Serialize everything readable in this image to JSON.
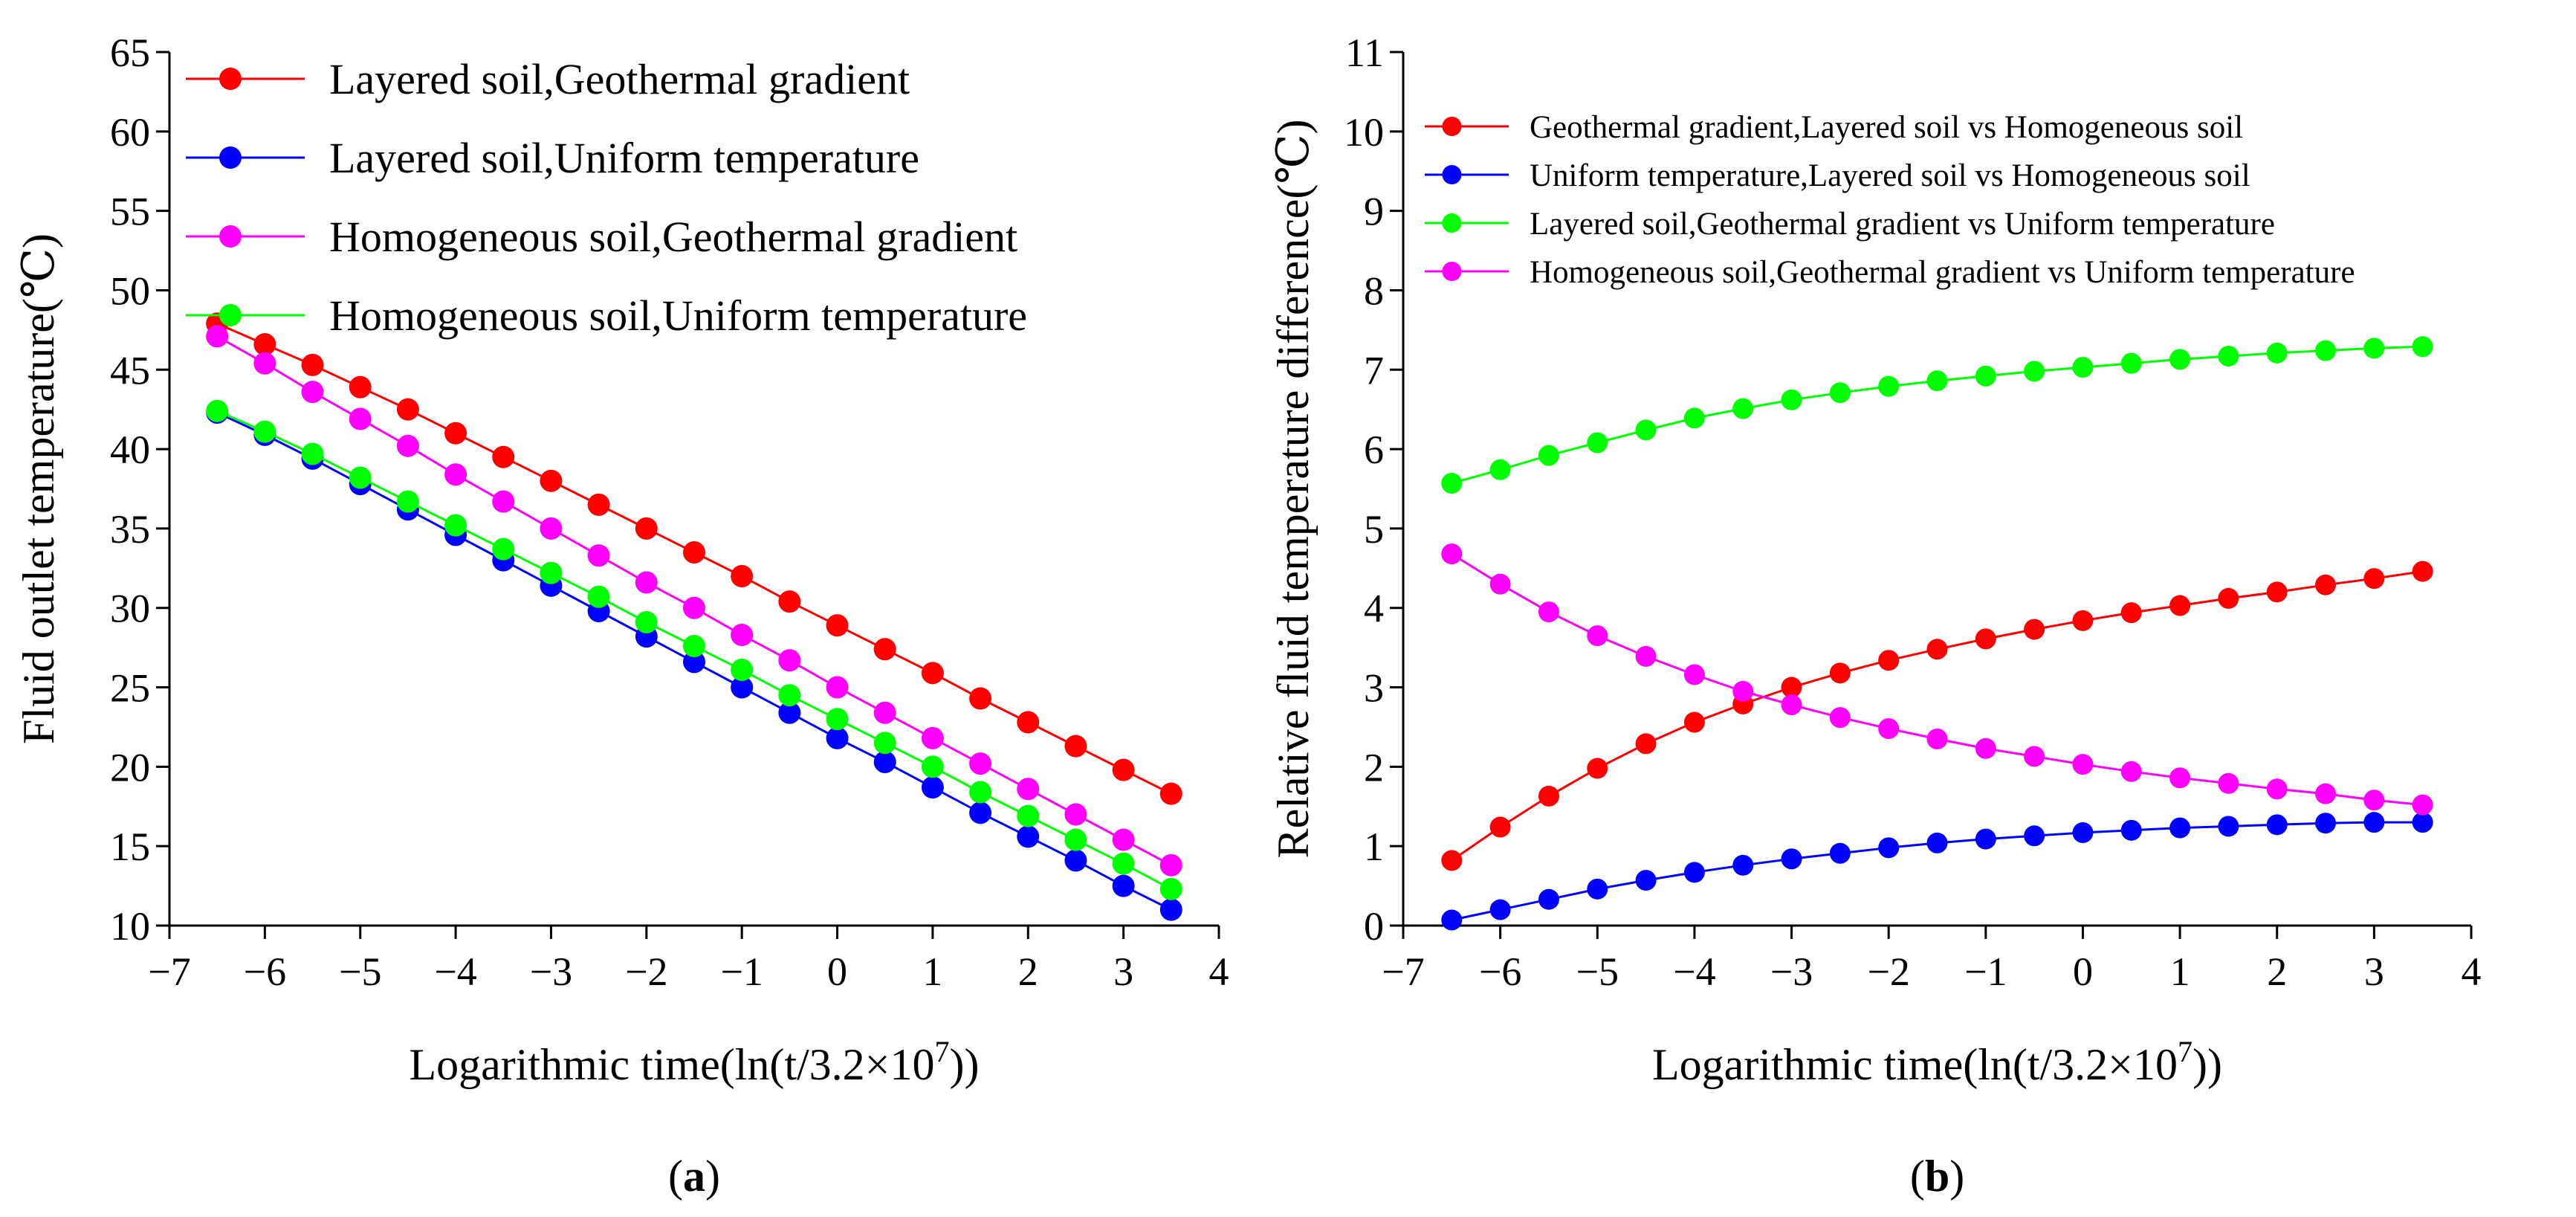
{
  "chart_data": [
    {
      "panel": "(a)",
      "panel_letter": "a",
      "type": "line",
      "title": "",
      "xlabel": "Logarithmic time(ln(t/3.2×10",
      "xlabel_sup": "7",
      "xlabel_end": "))",
      "ylabel": "Fluid outlet temperature(℃)",
      "xlim": [
        -7,
        4
      ],
      "ylim": [
        10,
        65
      ],
      "xticks": [
        -7,
        -6,
        -5,
        -4,
        -3,
        -2,
        -1,
        0,
        1,
        2,
        3,
        4
      ],
      "xtick_labels": [
        "−7",
        "−6",
        "−5",
        "−4",
        "−3",
        "−2",
        "−1",
        "0",
        "1",
        "2",
        "3",
        "4"
      ],
      "yticks": [
        10,
        15,
        20,
        25,
        30,
        35,
        40,
        45,
        50,
        55,
        60,
        65
      ],
      "ytick_labels": [
        "10",
        "15",
        "20",
        "25",
        "30",
        "35",
        "40",
        "45",
        "50",
        "55",
        "60",
        "65"
      ],
      "legend_position": "top-right",
      "x": [
        -6.5,
        -6.0,
        -5.5,
        -5.0,
        -4.5,
        -4.0,
        -3.5,
        -3.0,
        -2.5,
        -2.0,
        -1.5,
        -1.0,
        -0.5,
        0.0,
        0.5,
        1.0,
        1.5,
        2.0,
        2.5,
        3.0,
        3.5
      ],
      "series": [
        {
          "name": "Layered soil,Geothermal gradient",
          "color": "#ff0000",
          "values": [
            47.9,
            46.6,
            45.3,
            43.9,
            42.5,
            41.0,
            39.5,
            38.0,
            36.5,
            35.0,
            33.5,
            32.0,
            30.4,
            28.9,
            27.4,
            25.9,
            24.3,
            22.8,
            21.3,
            19.8,
            18.3
          ]
        },
        {
          "name": "Layered soil,Uniform temperature",
          "color": "#0000ff",
          "values": [
            42.3,
            40.9,
            39.4,
            37.8,
            36.2,
            34.6,
            33.0,
            31.4,
            29.8,
            28.2,
            26.6,
            25.0,
            23.4,
            21.8,
            20.3,
            18.7,
            17.1,
            15.6,
            14.1,
            12.5,
            11.0
          ]
        },
        {
          "name": "Homogeneous soil,Geothermal gradient",
          "color": "#ff00ff",
          "values": [
            47.1,
            45.4,
            43.6,
            41.9,
            40.2,
            38.4,
            36.7,
            35.0,
            33.3,
            31.6,
            30.0,
            28.3,
            26.7,
            25.0,
            23.4,
            21.8,
            20.2,
            18.6,
            17.0,
            15.4,
            13.8
          ]
        },
        {
          "name": "Homogeneous soil,Uniform temperature",
          "color": "#00ff00",
          "values": [
            42.4,
            41.1,
            39.7,
            38.2,
            36.7,
            35.2,
            33.7,
            32.2,
            30.7,
            29.1,
            27.6,
            26.1,
            24.5,
            23.0,
            21.5,
            20.0,
            18.4,
            16.9,
            15.4,
            13.9,
            12.3
          ]
        }
      ]
    },
    {
      "panel": "(b)",
      "panel_letter": "b",
      "type": "line",
      "title": "",
      "xlabel": "Logarithmic time(ln(t/3.2×10",
      "xlabel_sup": "7",
      "xlabel_end": "))",
      "ylabel": "Relative fluid temperature difference(℃)",
      "xlim": [
        -7,
        4
      ],
      "ylim": [
        0,
        11
      ],
      "xticks": [
        -7,
        -6,
        -5,
        -4,
        -3,
        -2,
        -1,
        0,
        1,
        2,
        3,
        4
      ],
      "xtick_labels": [
        "−7",
        "−6",
        "−5",
        "−4",
        "−3",
        "−2",
        "−1",
        "0",
        "1",
        "2",
        "3",
        "4"
      ],
      "yticks": [
        0,
        1,
        2,
        3,
        4,
        5,
        6,
        7,
        8,
        9,
        10,
        11
      ],
      "ytick_labels": [
        "0",
        "1",
        "2",
        "3",
        "4",
        "5",
        "6",
        "7",
        "8",
        "9",
        "10",
        "11"
      ],
      "legend_position": "top-right",
      "x": [
        -6.5,
        -6.0,
        -5.5,
        -5.0,
        -4.5,
        -4.0,
        -3.5,
        -3.0,
        -2.5,
        -2.0,
        -1.5,
        -1.0,
        -0.5,
        0.0,
        0.5,
        1.0,
        1.5,
        2.0,
        2.5,
        3.0,
        3.5
      ],
      "series": [
        {
          "name": "Geothermal gradient,Layered soil vs Homogeneous soil",
          "color": "#ff0000",
          "values": [
            0.82,
            1.24,
            1.63,
            1.98,
            2.29,
            2.56,
            2.79,
            3.0,
            3.18,
            3.34,
            3.48,
            3.61,
            3.73,
            3.84,
            3.94,
            4.03,
            4.12,
            4.2,
            4.29,
            4.37,
            4.46
          ]
        },
        {
          "name": "Uniform temperature,Layered soil vs Homogeneous soil",
          "color": "#0000ff",
          "values": [
            0.07,
            0.2,
            0.33,
            0.46,
            0.57,
            0.67,
            0.76,
            0.84,
            0.91,
            0.98,
            1.04,
            1.09,
            1.13,
            1.17,
            1.2,
            1.23,
            1.25,
            1.27,
            1.29,
            1.3,
            1.3
          ]
        },
        {
          "name": "Layered soil,Geothermal gradient vs Uniform temperature",
          "color": "#00ff00",
          "values": [
            5.57,
            5.74,
            5.92,
            6.08,
            6.24,
            6.39,
            6.51,
            6.62,
            6.71,
            6.79,
            6.86,
            6.92,
            6.98,
            7.03,
            7.08,
            7.13,
            7.17,
            7.21,
            7.24,
            7.27,
            7.29
          ]
        },
        {
          "name": "Homogeneous soil,Geothermal gradient vs Uniform temperature",
          "color": "#ff00ff",
          "values": [
            4.68,
            4.3,
            3.95,
            3.65,
            3.39,
            3.16,
            2.95,
            2.78,
            2.62,
            2.48,
            2.35,
            2.23,
            2.13,
            2.03,
            1.94,
            1.86,
            1.79,
            1.72,
            1.66,
            1.58,
            1.52
          ]
        }
      ]
    }
  ]
}
